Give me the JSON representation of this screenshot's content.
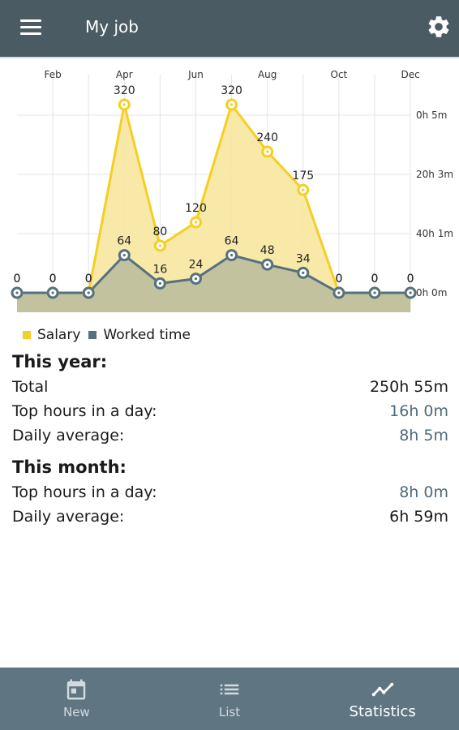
{
  "app_bar": {
    "title": "My job",
    "menu_icon": "menu-icon",
    "settings_icon": "gear-icon"
  },
  "chart_data": {
    "type": "line",
    "x_ticks": [
      "Feb",
      "Apr",
      "Jun",
      "Aug",
      "Oct",
      "Dec"
    ],
    "x": [
      1,
      2,
      3,
      4,
      5,
      6,
      7,
      8,
      9,
      10,
      11,
      12
    ],
    "series": [
      {
        "name": "Salary",
        "color": "#f5cf22",
        "fill": "#f7e7a0",
        "values": [
          0,
          0,
          0,
          320,
          80,
          120,
          320,
          240,
          175,
          0,
          0,
          0
        ]
      },
      {
        "name": "Worked time",
        "color": "#56717f",
        "fill": "#c2c39e",
        "values": [
          0,
          0,
          0,
          64,
          16,
          24,
          64,
          48,
          34,
          0,
          0,
          0
        ]
      }
    ],
    "right_axis_labels": [
      "0h 5m",
      "20h 3m",
      "40h 1m",
      "0h 0m"
    ],
    "grid": true,
    "legend": "bottom-left"
  },
  "stats": {
    "year_heading": "This year:",
    "year_rows": [
      {
        "label": "Total",
        "value": "250h 55m"
      },
      {
        "label": "Top hours in a day:",
        "value": "16h 0m"
      },
      {
        "label": "Daily average:",
        "value": "8h 5m"
      }
    ],
    "month_heading": "This month:",
    "month_rows": [
      {
        "label": "Top hours in a day:",
        "value": "8h 0m"
      },
      {
        "label": "Daily average:",
        "value": "6h 59m"
      }
    ]
  },
  "bottom_nav": {
    "items": [
      {
        "label": "New",
        "icon": "calendar-icon"
      },
      {
        "label": "List",
        "icon": "list-icon"
      },
      {
        "label": "Statistics",
        "icon": "chart-line-icon"
      }
    ],
    "active": "Statistics"
  }
}
